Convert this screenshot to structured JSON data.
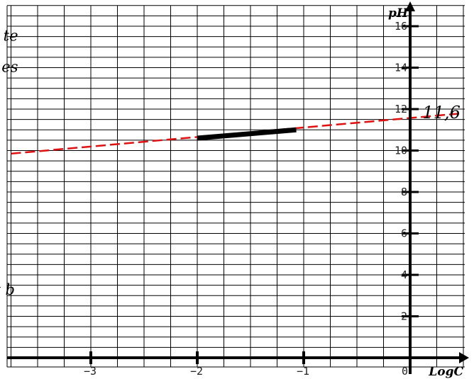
{
  "chart_data": {
    "type": "line",
    "title": "",
    "xlabel": "LogC",
    "ylabel": "pH",
    "xlim": [
      -3.75,
      0.5
    ],
    "ylim": [
      0,
      16.5
    ],
    "x_grid_step": 0.25,
    "y_grid_step": 1,
    "grid": true,
    "x_ticks": [
      {
        "value": -3,
        "label": "−3"
      },
      {
        "value": -2,
        "label": "−2"
      },
      {
        "value": -1,
        "label": "−1"
      },
      {
        "value": 0,
        "label": "0"
      }
    ],
    "y_ticks": [
      {
        "value": 2,
        "label": "2"
      },
      {
        "value": 4,
        "label": "4"
      },
      {
        "value": 6,
        "label": "6"
      },
      {
        "value": 8,
        "label": "8"
      },
      {
        "value": 10,
        "label": "10"
      },
      {
        "value": 12,
        "label": "12"
      },
      {
        "value": 14,
        "label": "14"
      },
      {
        "value": 16,
        "label": "16"
      }
    ],
    "series": [
      {
        "style": "dashed",
        "color": "#e01010",
        "points": [
          {
            "x": -3.75,
            "y": 9.85
          },
          {
            "x": 0.5,
            "y": 11.8
          }
        ]
      },
      {
        "style": "solid-thick",
        "color": "#000000",
        "points": [
          {
            "x": -2.0,
            "y": 10.6
          },
          {
            "x": -1.07,
            "y": 11.0
          }
        ]
      }
    ],
    "annotations": [
      {
        "text": "11,6",
        "x": 0.15,
        "y": 11.55,
        "style": "large"
      },
      {
        "text": "te",
        "x": -3.75,
        "y": 15.3,
        "style": "small"
      },
      {
        "text": "es",
        "x": -3.75,
        "y": 13.8,
        "style": "small"
      },
      {
        "text": "t b",
        "x": -3.78,
        "y": 3.05,
        "style": "small"
      }
    ]
  }
}
